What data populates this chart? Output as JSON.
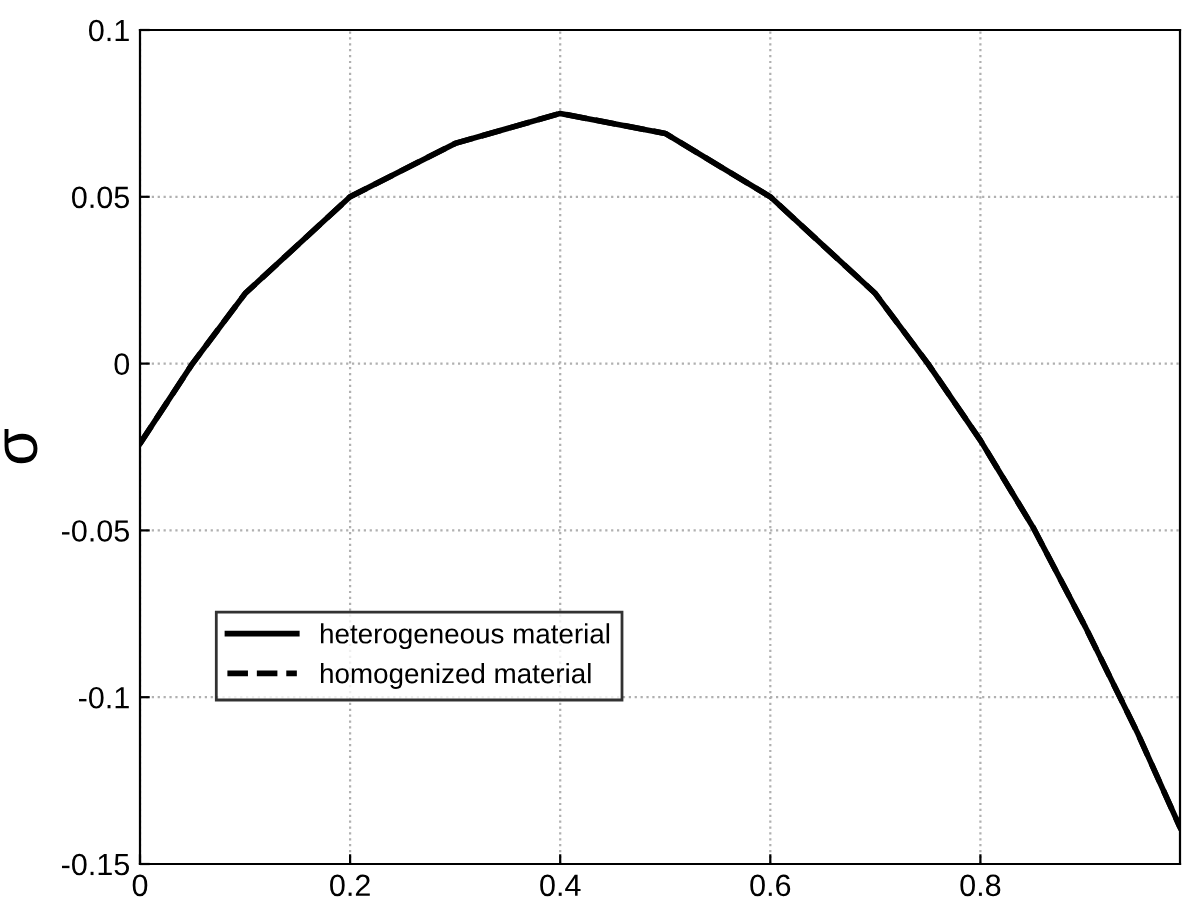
{
  "chart_data": {
    "type": "line",
    "ylabel": "σ",
    "x": [
      0,
      0.05,
      0.1,
      0.2,
      0.3,
      0.4,
      0.5,
      0.6,
      0.7,
      0.75,
      0.8,
      0.85,
      0.9,
      0.95,
      0.99
    ],
    "series": [
      {
        "name": "heterogeneous material",
        "color": "#000000",
        "line_style": "solid",
        "values": [
          -0.024,
          0,
          0.021,
          0.05,
          0.066,
          0.075,
          0.069,
          0.05,
          0.021,
          0,
          -0.023,
          -0.049,
          -0.079,
          -0.111,
          -0.139
        ]
      },
      {
        "name": "homogenized material",
        "color": "#000000",
        "line_style": "dashed",
        "values": [
          -0.024,
          0,
          0.021,
          0.05,
          0.066,
          0.075,
          0.069,
          0.05,
          0.021,
          0,
          -0.023,
          -0.049,
          -0.079,
          -0.111,
          -0.139
        ]
      }
    ],
    "xlim": [
      0,
      0.99
    ],
    "xticks": [
      0,
      0.2,
      0.4,
      0.6,
      0.8
    ],
    "ylim": [
      -0.15,
      0.1
    ],
    "yticks": [
      -0.15,
      -0.1,
      -0.05,
      0,
      0.05,
      0.1
    ],
    "grid": true,
    "legend": "lower left",
    "marker": "none"
  }
}
